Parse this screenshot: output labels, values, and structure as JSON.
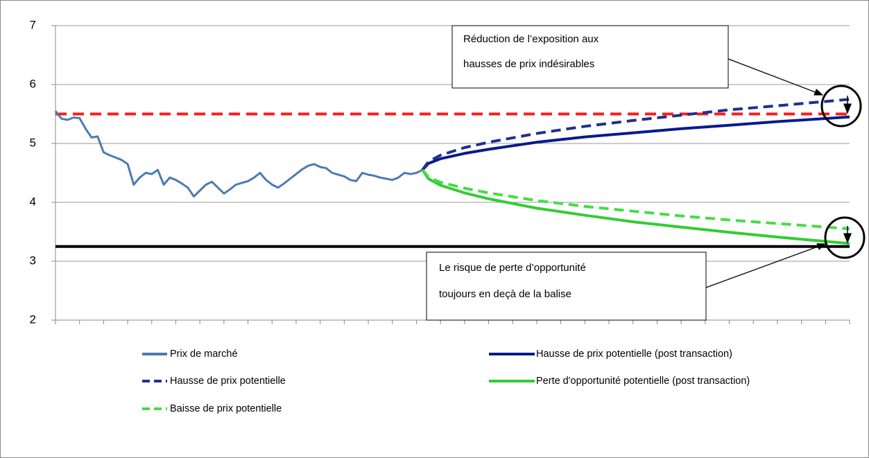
{
  "chart_data": {
    "type": "line",
    "ylim": [
      2,
      7
    ],
    "yticks": [
      2,
      3,
      4,
      5,
      6,
      7
    ],
    "grid": true,
    "xlim": [
      0,
      33
    ],
    "xticks": [
      0,
      1,
      2,
      3,
      4,
      5,
      6,
      7,
      8,
      9,
      10,
      11,
      12,
      13,
      14,
      15,
      16,
      17,
      18,
      19,
      20,
      21,
      22,
      23,
      24,
      25,
      26,
      27,
      28,
      29,
      30,
      31,
      32,
      33
    ],
    "xtick_labels": false,
    "series": [
      {
        "name": "Prix de marché",
        "color": "#4a7ab5",
        "dashed": false,
        "x": [
          0,
          0.25,
          0.5,
          0.75,
          1,
          1.25,
          1.5,
          1.75,
          2,
          2.25,
          2.5,
          2.75,
          3,
          3.25,
          3.5,
          3.75,
          4,
          4.25,
          4.5,
          4.75,
          5,
          5.25,
          5.5,
          5.75,
          6,
          6.25,
          6.5,
          6.75,
          7,
          7.25,
          7.5,
          7.75,
          8,
          8.25,
          8.5,
          8.75,
          9,
          9.25,
          9.5,
          9.75,
          10,
          10.25,
          10.5,
          10.75,
          11,
          11.25,
          11.5,
          11.75,
          12,
          12.25,
          12.5,
          12.75,
          13,
          13.25,
          13.5,
          13.75,
          14,
          14.25,
          14.5,
          14.75,
          15,
          15.25
        ],
        "values": [
          5.55,
          5.42,
          5.4,
          5.44,
          5.43,
          5.25,
          5.1,
          5.12,
          4.85,
          4.8,
          4.76,
          4.72,
          4.65,
          4.3,
          4.42,
          4.5,
          4.48,
          4.55,
          4.3,
          4.42,
          4.38,
          4.32,
          4.25,
          4.1,
          4.2,
          4.3,
          4.35,
          4.25,
          4.15,
          4.22,
          4.3,
          4.33,
          4.36,
          4.42,
          4.5,
          4.38,
          4.3,
          4.25,
          4.32,
          4.4,
          4.48,
          4.56,
          4.62,
          4.65,
          4.6,
          4.58,
          4.5,
          4.47,
          4.44,
          4.38,
          4.36,
          4.5,
          4.47,
          4.45,
          4.42,
          4.4,
          4.38,
          4.42,
          4.5,
          4.48,
          4.5,
          4.55
        ]
      },
      {
        "name": "Hausse de prix potentielle (post transaction)",
        "color": "#0a1a8c",
        "dashed": false,
        "x": [
          15.25,
          15.5,
          16,
          17,
          18,
          20,
          22,
          24,
          26,
          28,
          30,
          33
        ],
        "values": [
          4.55,
          4.66,
          4.74,
          4.83,
          4.9,
          5.02,
          5.11,
          5.18,
          5.25,
          5.31,
          5.37,
          5.45
        ]
      },
      {
        "name": "Hausse de prix potentielle",
        "color": "#1f2f8f",
        "dashed": true,
        "x": [
          15.25,
          15.5,
          16,
          17,
          18,
          20,
          22,
          24,
          26,
          28,
          30,
          33
        ],
        "values": [
          4.55,
          4.69,
          4.8,
          4.93,
          5.02,
          5.17,
          5.29,
          5.39,
          5.48,
          5.57,
          5.64,
          5.75
        ]
      },
      {
        "name": "Perte d'opportunité potentielle (post transaction)",
        "color": "#33cc33",
        "dashed": false,
        "x": [
          15.25,
          15.5,
          16,
          17,
          18,
          20,
          22,
          24,
          26,
          28,
          30,
          33
        ],
        "values": [
          4.55,
          4.4,
          4.29,
          4.16,
          4.06,
          3.9,
          3.78,
          3.67,
          3.58,
          3.49,
          3.41,
          3.3
        ]
      },
      {
        "name": "Baisse de prix potentielle",
        "color": "#44dd44",
        "dashed": true,
        "x": [
          15.25,
          15.5,
          16,
          17,
          18,
          20,
          22,
          24,
          26,
          28,
          30,
          33
        ],
        "values": [
          4.55,
          4.43,
          4.34,
          4.24,
          4.16,
          4.03,
          3.93,
          3.85,
          3.77,
          3.7,
          3.64,
          3.55
        ]
      }
    ],
    "reference_lines": [
      {
        "value": 5.5,
        "color": "#ff1a1a",
        "dashed": true
      },
      {
        "value": 3.25,
        "color": "#000000",
        "dashed": false
      }
    ],
    "annotations": [
      {
        "lines": [
          "Réduction de l’exposition aux",
          "hausses de prix indésirables"
        ]
      },
      {
        "lines": [
          "Le risque de perte d’opportunité",
          "toujours en deçà de la balise"
        ]
      }
    ]
  }
}
